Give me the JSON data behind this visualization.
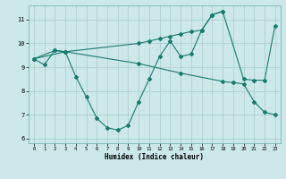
{
  "xlabel": "Humidex (Indice chaleur)",
  "bg_color": "#cce8e8",
  "line_color": "#1a7a6e",
  "grid_color": "#aacccc",
  "xlim": [
    -0.5,
    23.5
  ],
  "ylim": [
    5.8,
    11.6
  ],
  "xticks": [
    0,
    1,
    2,
    3,
    4,
    5,
    6,
    7,
    8,
    9,
    10,
    11,
    12,
    13,
    14,
    15,
    16,
    17,
    18,
    19,
    20,
    21,
    22,
    23
  ],
  "yticks": [
    6,
    7,
    8,
    9,
    10,
    11
  ],
  "line1_x": [
    0,
    1,
    2,
    3,
    4,
    5,
    6,
    7,
    8,
    9,
    10,
    11,
    12,
    13,
    14,
    15,
    16,
    17,
    18
  ],
  "line1_y": [
    9.35,
    9.1,
    9.7,
    9.65,
    8.6,
    7.75,
    6.85,
    6.45,
    6.35,
    6.55,
    7.55,
    8.5,
    9.45,
    10.1,
    9.45,
    9.55,
    10.55,
    11.2,
    11.35
  ],
  "line2_x": [
    0,
    2,
    3,
    10,
    11,
    12,
    13,
    14,
    15,
    16,
    17,
    18,
    20,
    21,
    22,
    23
  ],
  "line2_y": [
    9.35,
    9.7,
    9.65,
    10.0,
    10.1,
    10.2,
    10.3,
    10.4,
    10.5,
    10.55,
    11.2,
    11.35,
    8.5,
    8.45,
    8.45,
    10.75
  ],
  "line3_x": [
    0,
    3,
    10,
    14,
    18,
    19,
    20,
    21,
    22,
    23
  ],
  "line3_y": [
    9.35,
    9.65,
    9.15,
    8.75,
    8.4,
    8.35,
    8.3,
    7.55,
    7.1,
    7.0
  ]
}
